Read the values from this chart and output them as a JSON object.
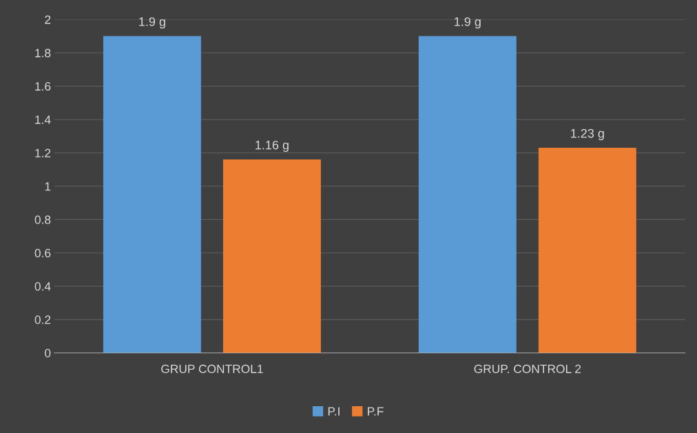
{
  "chart_data": {
    "type": "bar",
    "categories": [
      "GRUP CONTROL1",
      "GRUP. CONTROL 2"
    ],
    "series": [
      {
        "name": "P.I",
        "color": "#5b9bd5",
        "values": [
          1.9,
          1.9
        ],
        "value_labels": [
          "1.9 g",
          "1.9 g"
        ]
      },
      {
        "name": "P.F",
        "color": "#ed7d31",
        "values": [
          1.16,
          1.23
        ],
        "value_labels": [
          "1.16 g",
          "1.23 g"
        ]
      }
    ],
    "ylim": [
      0,
      2
    ],
    "yticks": [
      0,
      0.2,
      0.4,
      0.6,
      0.8,
      1,
      1.2,
      1.4,
      1.6,
      1.8,
      2
    ],
    "grid": "y",
    "legend": "bottom"
  }
}
